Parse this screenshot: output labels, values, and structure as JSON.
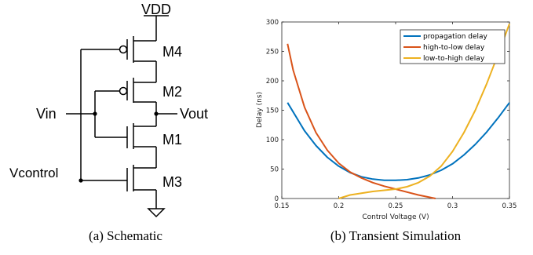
{
  "schematic": {
    "vdd": "VDD",
    "vin": "Vin",
    "vout": "Vout",
    "vcontrol": "Vcontrol",
    "m4": "M4",
    "m2": "M2",
    "m1": "M1",
    "m3": "M3",
    "caption": "(a) Schematic"
  },
  "chart_caption": "(b) Transient Simulation",
  "chart_data": {
    "type": "line",
    "xlabel": "Control Voltage (V)",
    "ylabel": "Delay (ns)",
    "xlim": [
      0.15,
      0.35
    ],
    "ylim": [
      0,
      300
    ],
    "x_ticks": [
      "0.15",
      "0.2",
      "0.25",
      "0.3",
      "0.35"
    ],
    "y_ticks": [
      "0",
      "50",
      "100",
      "150",
      "200",
      "250",
      "300"
    ],
    "legend_position": "top-right",
    "grid": false,
    "series": [
      {
        "name": "propagation delay",
        "color": "#0072bd",
        "x": [
          0.155,
          0.17,
          0.18,
          0.19,
          0.2,
          0.21,
          0.22,
          0.23,
          0.24,
          0.25,
          0.26,
          0.27,
          0.28,
          0.29,
          0.3,
          0.31,
          0.32,
          0.33,
          0.34,
          0.35
        ],
        "y": [
          163,
          115,
          90,
          70,
          55,
          44,
          37,
          33,
          31,
          31,
          32,
          35,
          40,
          48,
          59,
          74,
          92,
          113,
          137,
          163
        ]
      },
      {
        "name": "high-to-low delay",
        "color": "#d95319",
        "x": [
          0.155,
          0.16,
          0.17,
          0.18,
          0.19,
          0.2,
          0.21,
          0.22,
          0.23,
          0.24,
          0.25,
          0.26,
          0.27,
          0.28,
          0.285
        ],
        "y": [
          263,
          218,
          155,
          112,
          82,
          60,
          45,
          35,
          27,
          21,
          16,
          11,
          6,
          2,
          0
        ]
      },
      {
        "name": "low-to-high delay",
        "color": "#edb120",
        "x": [
          0.2,
          0.21,
          0.22,
          0.23,
          0.24,
          0.25,
          0.26,
          0.27,
          0.28,
          0.29,
          0.3,
          0.31,
          0.32,
          0.33,
          0.34,
          0.35
        ],
        "y": [
          0,
          6,
          9,
          12,
          14,
          16,
          20,
          27,
          38,
          55,
          80,
          112,
          150,
          195,
          245,
          297
        ]
      }
    ]
  }
}
